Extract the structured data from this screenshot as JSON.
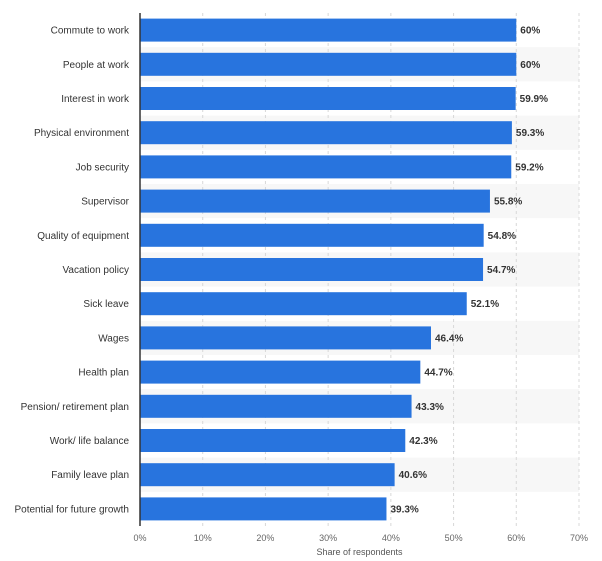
{
  "chart_data": {
    "type": "bar",
    "orientation": "horizontal",
    "categories": [
      "Commute to work",
      "People at work",
      "Interest in work",
      "Physical environment",
      "Job security",
      "Supervisor",
      "Quality of equipment",
      "Vacation policy",
      "Sick leave",
      "Wages",
      "Health plan",
      "Pension/ retirement plan",
      "Work/ life balance",
      "Family leave plan",
      "Potential for future growth"
    ],
    "values": [
      60,
      60,
      59.9,
      59.3,
      59.2,
      55.8,
      54.8,
      54.7,
      52.1,
      46.4,
      44.7,
      43.3,
      42.3,
      40.6,
      39.3
    ],
    "value_labels": [
      "60%",
      "60%",
      "59.9%",
      "59.3%",
      "59.2%",
      "55.8%",
      "54.8%",
      "54.7%",
      "52.1%",
      "46.4%",
      "44.7%",
      "43.3%",
      "42.3%",
      "40.6%",
      "39.3%"
    ],
    "x_ticks": [
      0,
      10,
      20,
      30,
      40,
      50,
      60,
      70
    ],
    "x_tick_labels": [
      "0%",
      "10%",
      "20%",
      "30%",
      "40%",
      "50%",
      "60%",
      "70%"
    ],
    "xlabel": "Share of respondents",
    "xlim": [
      0,
      70
    ],
    "grid": true,
    "colors": {
      "bar": "#2874de",
      "stripe": "#f7f7f7",
      "grid": "#d8d8d8",
      "axis": "#333333"
    }
  }
}
